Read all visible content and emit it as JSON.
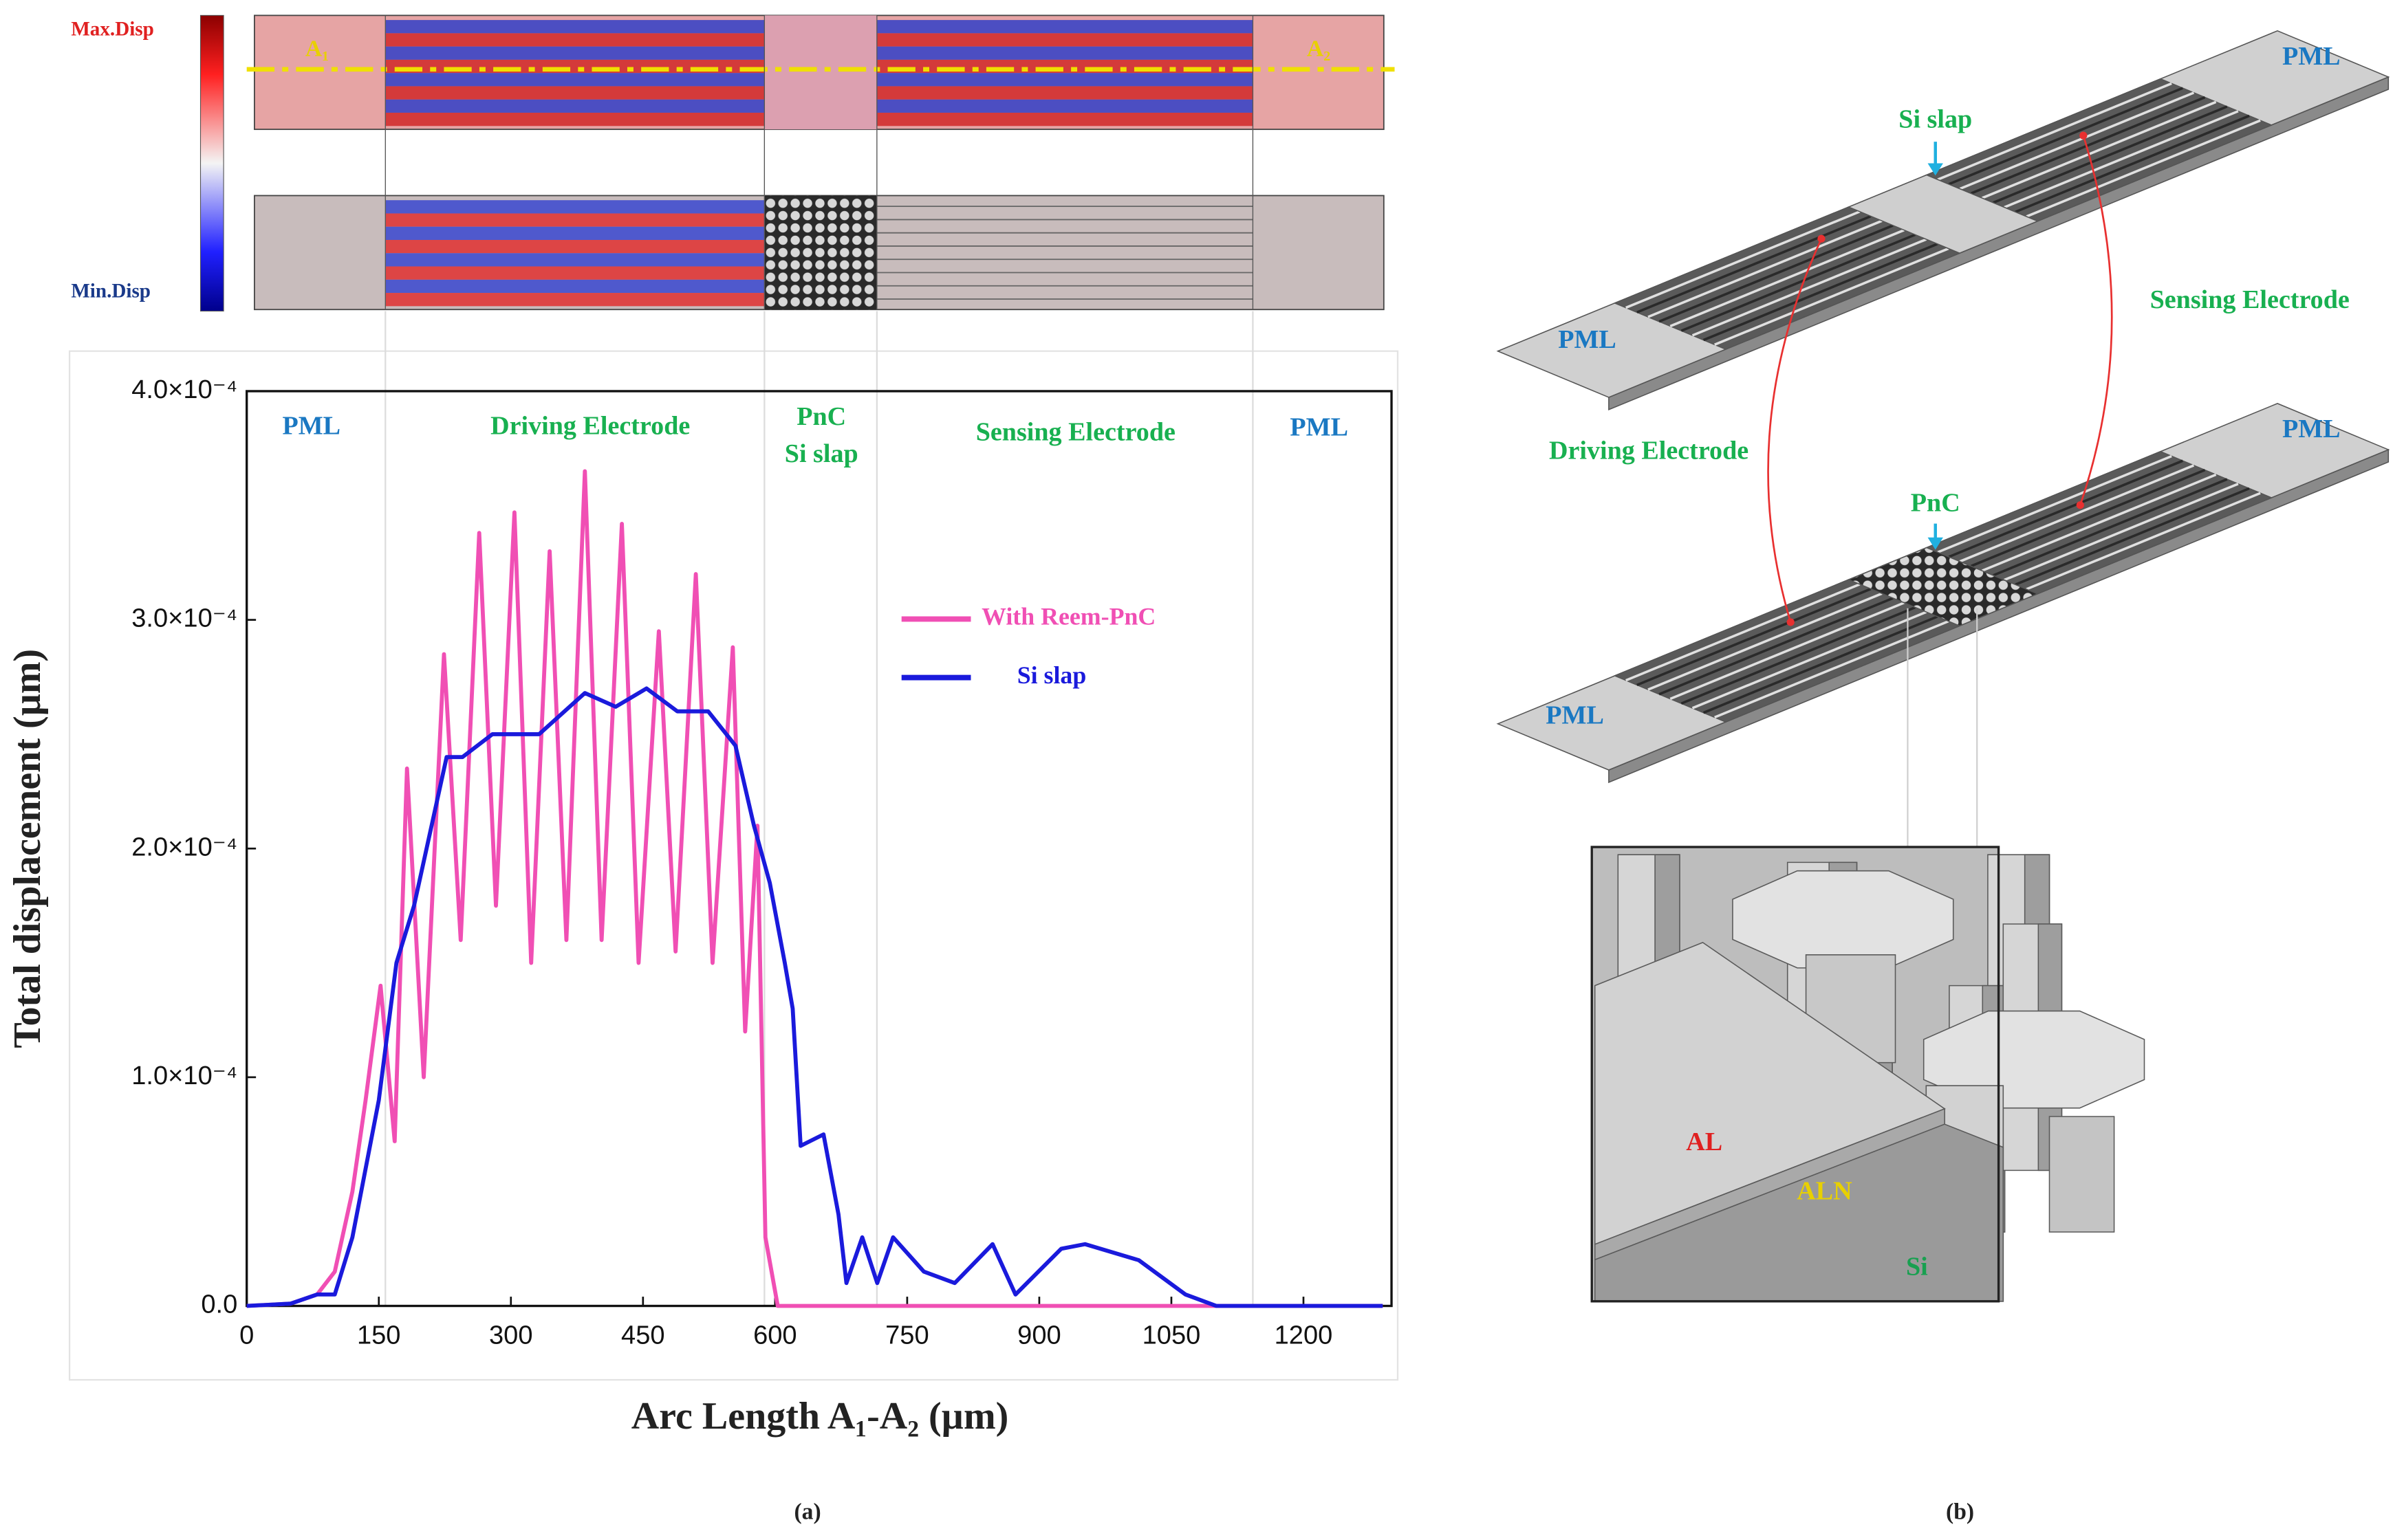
{
  "chart_data": {
    "type": "line",
    "x_label": "Arc Length A₁-A₂ (µm)",
    "y_label": "Total displacement (µm)",
    "xlim": [
      0,
      1300
    ],
    "xticks": [
      0,
      150,
      300,
      450,
      600,
      750,
      900,
      1050,
      1200
    ],
    "ylim": [
      0,
      0.0004
    ],
    "yticks": [
      {
        "value": 0,
        "label": "0.0"
      },
      {
        "value": 0.0001,
        "label": "1.0×10⁻⁴"
      },
      {
        "value": 0.0002,
        "label": "2.0×10⁻⁴"
      },
      {
        "value": 0.0003,
        "label": "3.0×10⁻⁴"
      },
      {
        "value": 0.0004,
        "label": "4.0×10⁻⁴"
      }
    ],
    "annotations": [
      "PML",
      "Driving Electrode",
      "PnC",
      "Si slap",
      "Sensing Electrode",
      "PML"
    ],
    "series": [
      {
        "name": "With Reem-PnC",
        "color": "#f04fb4",
        "x": [
          0,
          50,
          80,
          100,
          120,
          135,
          152,
          168,
          182,
          201,
          224,
          243,
          264,
          283,
          304,
          323,
          344,
          363,
          384,
          403,
          426,
          445,
          468,
          487,
          510,
          529,
          552,
          566,
          580,
          589,
          603,
          650,
          800,
          1000,
          1290
        ],
        "values": [
          0,
          1e-06,
          5e-06,
          1.5e-05,
          5e-05,
          9e-05,
          0.00014,
          7.2e-05,
          0.000235,
          0.0001,
          0.000285,
          0.00016,
          0.000338,
          0.000175,
          0.000347,
          0.00015,
          0.00033,
          0.00016,
          0.000365,
          0.00016,
          0.000342,
          0.00015,
          0.000295,
          0.000155,
          0.00032,
          0.00015,
          0.000288,
          0.00012,
          0.00021,
          3e-05,
          0,
          0,
          0,
          0,
          0
        ]
      },
      {
        "name": "Si slap",
        "color": "#1a1adc",
        "x": [
          0,
          50,
          80,
          100,
          120,
          150,
          170,
          190,
          227,
          245,
          279,
          332,
          384,
          419,
          454,
          489,
          524,
          555,
          576,
          594,
          611,
          620,
          629,
          655,
          672,
          681,
          699,
          716,
          734,
          769,
          804,
          847,
          873,
          925,
          952,
          1013,
          1066,
          1101,
          1290
        ],
        "values": [
          0,
          1e-06,
          5e-06,
          5e-06,
          3e-05,
          9e-05,
          0.00015,
          0.000175,
          0.00024,
          0.00024,
          0.00025,
          0.00025,
          0.000268,
          0.000262,
          0.00027,
          0.00026,
          0.00026,
          0.000245,
          0.00021,
          0.000185,
          0.00015,
          0.00013,
          7e-05,
          7.5e-05,
          4e-05,
          1e-05,
          3e-05,
          1e-05,
          3e-05,
          1.5e-05,
          1e-05,
          2.7e-05,
          5e-06,
          2.5e-05,
          2.7e-05,
          2e-05,
          5e-06,
          0,
          0
        ]
      }
    ]
  },
  "heatmap": {
    "max_label": "Max.Disp",
    "min_label": "Min.Disp",
    "start": "A₁",
    "end": "A₂"
  },
  "diagram": {
    "top_slab": "Si slap",
    "top_pml_left": "PML",
    "top_pml_right": "PML",
    "sensing": "Sensing Electrode",
    "driving": "Driving Electrode",
    "bottom_pnc": "PnC",
    "bottom_pml_left": "PML",
    "bottom_pml_right": "PML",
    "layers": [
      "AL",
      "ALN",
      "Si"
    ]
  },
  "captions": {
    "a": "(a)",
    "b": "(b)"
  }
}
